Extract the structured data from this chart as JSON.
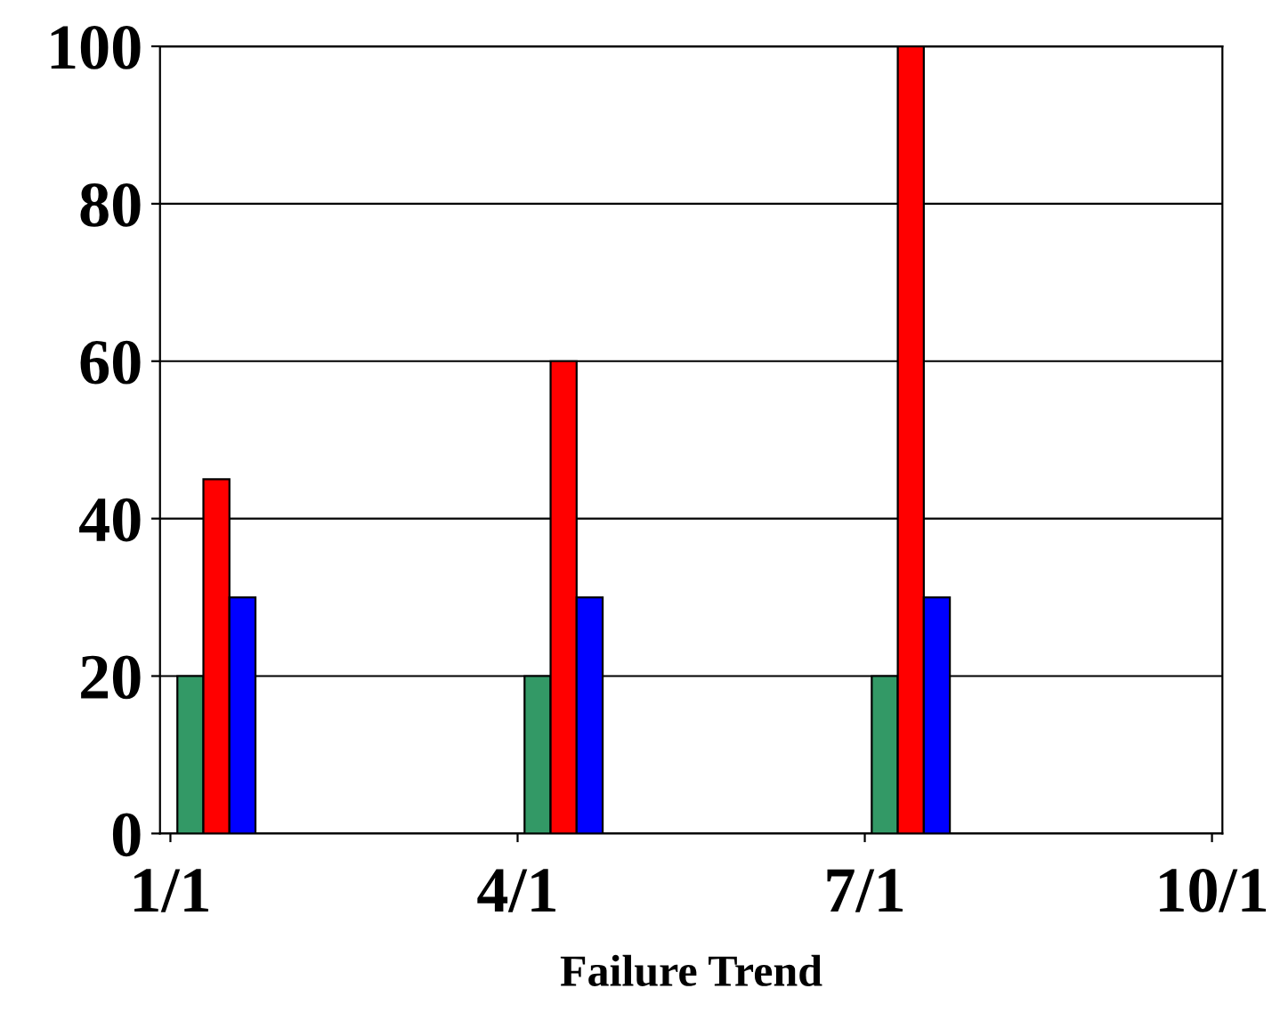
{
  "chart_data": {
    "type": "bar",
    "xlabel": "Failure Trend",
    "categories": [
      "1/1",
      "4/1",
      "7/1",
      "10/1"
    ],
    "series": [
      {
        "color": "#339966",
        "values": [
          20,
          20,
          20,
          null
        ]
      },
      {
        "color": "#ff0000",
        "values": [
          45,
          60,
          100,
          null
        ]
      },
      {
        "color": "#0000ff",
        "values": [
          30,
          30,
          30,
          null
        ]
      }
    ],
    "ylim": [
      0,
      100
    ],
    "yticks": [
      0,
      20,
      40,
      60,
      80,
      100
    ],
    "grid": "y",
    "legend": false
  }
}
